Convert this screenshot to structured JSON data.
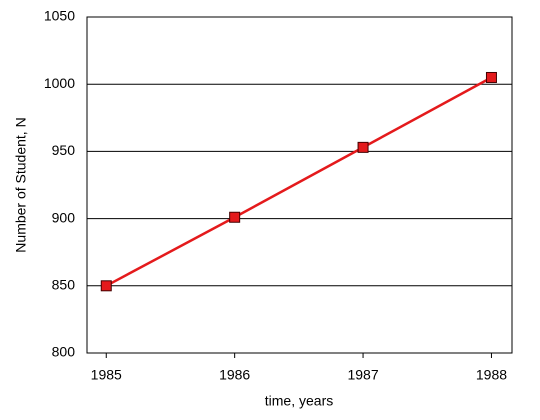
{
  "chart_data": {
    "type": "line",
    "x_label": "time, years",
    "y_label": "Number of Student, N",
    "x": [
      1985,
      1986,
      1987,
      1988
    ],
    "series": [
      {
        "name": "N",
        "color": "#e41a1c",
        "values": [
          850,
          901,
          953,
          1005
        ]
      }
    ],
    "xlim": [
      1984.85,
      1988.16
    ],
    "xticks": [
      1985,
      1986,
      1987,
      1988
    ],
    "ylim": [
      800,
      1050
    ],
    "yticks": [
      800,
      850,
      900,
      950,
      1000,
      1050
    ],
    "grid": true
  }
}
